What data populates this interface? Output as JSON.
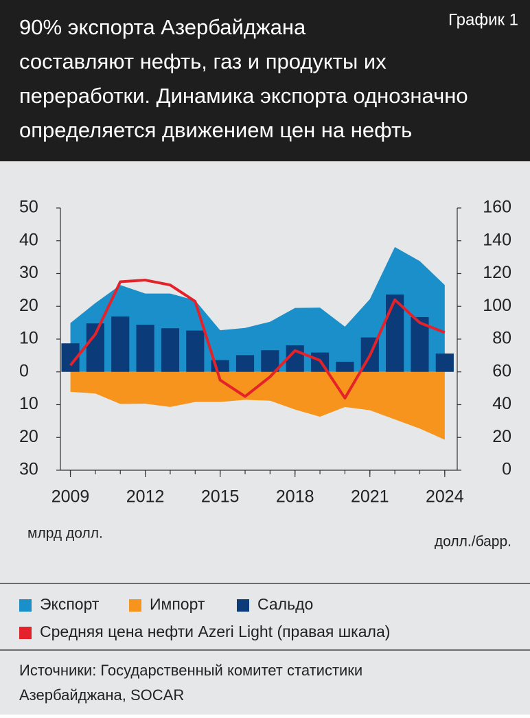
{
  "chart_data": {
    "type": "combo",
    "label": "График 1",
    "title_lines": [
      "90% экспорта Азербайджана",
      "составляют нефть, газ и продукты их",
      "переработки. Динамика экспорта однозначно",
      "определяется движением цен на нефть"
    ],
    "y_axis_label": "млрд долл.",
    "y2_axis_label": "долл./барр.",
    "x": [
      2009,
      2010,
      2011,
      2012,
      2013,
      2014,
      2015,
      2016,
      2017,
      2018,
      2019,
      2020,
      2021,
      2022,
      2023,
      2024
    ],
    "xlim": [
      2008.6,
      2024.5
    ],
    "xticks": [
      2009,
      2012,
      2015,
      2018,
      2021,
      2024
    ],
    "ylim": [
      -30,
      50
    ],
    "yticks": [
      {
        "value": 50,
        "label": "50"
      },
      {
        "value": 40,
        "label": "40"
      },
      {
        "value": 30,
        "label": "30"
      },
      {
        "value": 20,
        "label": "20"
      },
      {
        "value": 10,
        "label": "10"
      },
      {
        "value": 0,
        "label": "0"
      },
      {
        "value": -10,
        "label": "10"
      },
      {
        "value": -20,
        "label": "20"
      },
      {
        "value": -30,
        "label": "30"
      }
    ],
    "y2lim": [
      0,
      160
    ],
    "y2ticks": [
      160,
      140,
      120,
      100,
      80,
      60,
      40,
      20,
      0
    ],
    "series": [
      {
        "name": "Экспорт",
        "type": "area",
        "color": "#1b8fca",
        "values": [
          14.9,
          21,
          26.5,
          23.9,
          23.9,
          21.8,
          12.7,
          13.4,
          15.3,
          19.5,
          19.6,
          13.8,
          22.2,
          38.1,
          33.8,
          26.5
        ]
      },
      {
        "name": "Импорт",
        "type": "area",
        "color": "#f7941d",
        "values": [
          -6.1,
          -6.6,
          -9.8,
          -9.7,
          -10.7,
          -9.2,
          -9.2,
          -8.5,
          -8.8,
          -11.5,
          -13.7,
          -10.7,
          -11.7,
          -14.5,
          -17.3,
          -20.7
        ]
      },
      {
        "name": "Сальдо",
        "type": "bar",
        "color": "#0b3b78",
        "values": [
          8.7,
          14.8,
          16.9,
          14.4,
          13.3,
          12.6,
          3.6,
          5.1,
          6.6,
          8.1,
          5.9,
          3.1,
          10.5,
          23.6,
          16.7,
          5.6
        ]
      },
      {
        "name": "Средняя цена нефти Azeri Light (правая шкала)",
        "type": "line",
        "axis": "y2",
        "color": "#e4222a",
        "values": [
          64,
          83,
          115,
          116,
          113,
          103,
          55,
          45,
          57,
          73,
          67,
          44,
          70,
          104,
          90,
          84
        ]
      }
    ],
    "source_lines": [
      "Источники: Государственный комитет статистики",
      "Азербайджана, SOCAR"
    ]
  }
}
